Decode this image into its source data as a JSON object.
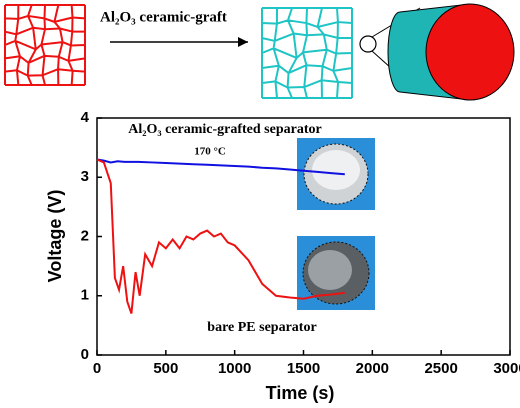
{
  "schematic": {
    "arrow_label": "Al₂O₃ ceramic-graft"
  },
  "chart_data": {
    "type": "line",
    "annotations": [
      "Al₂O₃ ceramic-grafted separator",
      "170 °C",
      "bare PE separator"
    ],
    "x_label": "Time (s)",
    "y_label": "Voltage (V)",
    "xlim": [
      0,
      3000
    ],
    "xticks": [
      0,
      500,
      1000,
      1500,
      2000,
      2500,
      3000
    ],
    "ylim": [
      0,
      4
    ],
    "yticks": [
      0,
      1,
      2,
      3,
      4
    ],
    "series": [
      {
        "color": "#1010e0",
        "x": [
          0,
          50,
          100,
          150,
          200,
          300,
          400,
          500,
          600,
          700,
          800,
          900,
          1000,
          1100,
          1200,
          1300,
          1400,
          1500,
          1600,
          1700,
          1800
        ],
        "values": [
          3.3,
          3.28,
          3.25,
          3.27,
          3.26,
          3.26,
          3.25,
          3.24,
          3.23,
          3.22,
          3.21,
          3.2,
          3.19,
          3.18,
          3.16,
          3.15,
          3.13,
          3.11,
          3.09,
          3.07,
          3.05
        ]
      },
      {
        "color": "#ee1111",
        "x": [
          0,
          50,
          100,
          130,
          160,
          190,
          220,
          250,
          280,
          310,
          350,
          400,
          450,
          500,
          550,
          600,
          650,
          700,
          750,
          800,
          850,
          900,
          950,
          1000,
          1100,
          1200,
          1300,
          1400,
          1500,
          1600,
          1700,
          1800
        ],
        "values": [
          3.3,
          3.25,
          2.9,
          1.3,
          1.1,
          1.5,
          0.9,
          0.7,
          1.4,
          1.0,
          1.7,
          1.5,
          1.9,
          1.8,
          1.95,
          1.8,
          2.0,
          1.95,
          2.05,
          2.1,
          2.0,
          2.05,
          1.9,
          1.85,
          1.6,
          1.2,
          1.0,
          0.97,
          0.95,
          1.0,
          1.02,
          1.05
        ]
      }
    ]
  }
}
